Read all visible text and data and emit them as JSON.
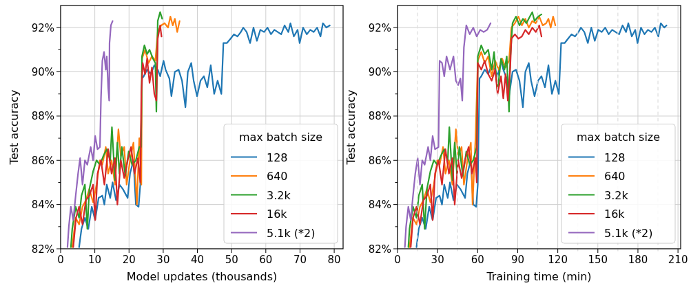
{
  "chart_data": [
    {
      "type": "line",
      "xlabel": "Model updates (thousands)",
      "ylabel": "Test accuracy",
      "legend_title": "max batch size",
      "legend": "bottom right",
      "grid": true,
      "line_style": "solid",
      "xlim": [
        0,
        82.6
      ],
      "xticks": [
        0,
        10,
        20,
        30,
        40,
        50,
        60,
        70,
        80
      ],
      "ylim": [
        82,
        93
      ],
      "yticks": [
        {
          "value": 82,
          "label": "82%"
        },
        {
          "value": 83,
          "label": null
        },
        {
          "value": 84,
          "label": "84%"
        },
        {
          "value": 85,
          "label": null
        },
        {
          "value": 86,
          "label": "86%"
        },
        {
          "value": 87,
          "label": null
        },
        {
          "value": 88,
          "label": "88%"
        },
        {
          "value": 89,
          "label": null
        },
        {
          "value": 90,
          "label": "90%"
        },
        {
          "value": 91,
          "label": null
        },
        {
          "value": 92,
          "label": "92%"
        }
      ],
      "series": [
        {
          "name": "128",
          "color": "#1f77b4",
          "x": [
            5.4,
            6.1,
            7.1,
            8.1,
            9.1,
            10.1,
            11.1,
            12.2,
            12.8,
            13.5,
            14.5,
            15.2,
            16.2,
            17.2,
            18.2,
            19.6,
            20.3,
            21.3,
            22.0,
            22.8,
            23.3,
            23.8,
            24.3,
            25.3,
            26.4,
            27.4,
            28.4,
            29.1,
            30.1,
            30.7,
            31.8,
            32.4,
            33.4,
            34.5,
            35.5,
            36.5,
            37.2,
            38.2,
            38.9,
            39.9,
            40.9,
            41.9,
            42.9,
            43.9,
            44.9,
            45.9,
            47.0,
            47.6,
            48.6,
            49.7,
            50.7,
            51.7,
            52.7,
            53.4,
            54.4,
            55.4,
            56.4,
            57.4,
            58.4,
            59.5,
            60.5,
            61.5,
            62.5,
            63.5,
            64.5,
            65.5,
            66.6,
            67.2,
            68.2,
            69.3,
            69.9,
            70.9,
            72.0,
            73.0,
            74.0,
            75.0,
            76.0,
            76.7,
            77.7,
            78.7
          ],
          "values": [
            82.07,
            82.9,
            83.4,
            82.9,
            83.9,
            83.3,
            84.3,
            84.4,
            84.0,
            84.9,
            84.3,
            85.0,
            84.2,
            84.9,
            84.7,
            84.3,
            85.4,
            86.0,
            84.0,
            83.9,
            84.9,
            89.7,
            89.8,
            90.1,
            89.9,
            90.3,
            90.1,
            89.8,
            90.5,
            90.1,
            89.7,
            88.9,
            90.0,
            90.1,
            89.6,
            88.4,
            90.0,
            90.4,
            89.6,
            88.9,
            89.6,
            89.8,
            89.3,
            90.3,
            89.0,
            89.6,
            89.0,
            91.3,
            91.3,
            91.5,
            91.7,
            91.6,
            91.8,
            92.0,
            91.8,
            91.3,
            92.0,
            91.4,
            91.9,
            91.8,
            92.0,
            91.7,
            91.9,
            91.8,
            91.7,
            92.1,
            91.8,
            92.2,
            91.6,
            91.9,
            91.3,
            92.0,
            91.7,
            91.9,
            91.8,
            92.0,
            91.6,
            92.2,
            92.0,
            92.1
          ]
        },
        {
          "name": "640",
          "color": "#ff7f0e",
          "x": [
            3.4,
            4.4,
            5.4,
            6.4,
            7.4,
            8.4,
            9.5,
            10.5,
            11.5,
            12.2,
            13.2,
            13.9,
            14.9,
            15.9,
            16.9,
            17.6,
            18.6,
            19.3,
            20.3,
            21.3,
            22.3,
            23.0,
            23.6,
            23.8,
            24.7,
            25.7,
            26.7,
            27.7,
            28.4,
            29.4,
            30.4,
            31.4,
            32.1,
            32.8,
            33.4,
            34.1,
            34.8
          ],
          "values": [
            82.07,
            83.4,
            83.1,
            83.9,
            84.2,
            84.7,
            84.1,
            84.9,
            86.0,
            85.8,
            86.6,
            85.4,
            86.0,
            84.9,
            87.4,
            86.2,
            86.6,
            84.9,
            86.0,
            86.8,
            84.0,
            87.0,
            84.9,
            90.6,
            91.0,
            90.4,
            90.7,
            90.5,
            91.8,
            92.1,
            92.2,
            92.0,
            92.5,
            92.1,
            92.4,
            91.8,
            92.3
          ]
        },
        {
          "name": "3.2k",
          "color": "#2ca02c",
          "x": [
            3.0,
            3.4,
            4.4,
            5.4,
            6.1,
            7.1,
            7.8,
            8.4,
            9.5,
            10.5,
            11.5,
            12.5,
            13.5,
            14.5,
            15.0,
            15.9,
            16.6,
            17.2,
            17.9,
            18.9,
            19.9,
            20.9,
            22.0,
            23.0,
            23.5,
            23.8,
            24.5,
            25.3,
            26.0,
            27.0,
            27.7,
            28.0,
            28.4,
            29.1,
            29.7
          ],
          "values": [
            82.07,
            82.9,
            83.9,
            83.4,
            84.4,
            84.9,
            82.9,
            84.7,
            85.5,
            86.0,
            85.8,
            86.2,
            86.5,
            86.0,
            87.5,
            85.1,
            86.8,
            85.4,
            86.6,
            85.3,
            86.4,
            85.8,
            86.0,
            86.6,
            86.6,
            90.7,
            91.2,
            90.8,
            91.0,
            90.6,
            90.4,
            88.2,
            92.3,
            92.7,
            92.4
          ]
        },
        {
          "name": "16k",
          "color": "#d62728",
          "x": [
            3.7,
            4.5,
            5.4,
            6.4,
            7.4,
            8.4,
            9.5,
            10.1,
            10.8,
            11.8,
            12.8,
            13.9,
            14.9,
            15.9,
            16.6,
            17.6,
            18.6,
            19.6,
            20.6,
            21.6,
            22.6,
            23.3,
            23.6,
            24.0,
            24.7,
            25.3,
            26.0,
            26.7,
            27.4,
            28.0,
            28.4,
            29.1,
            29.5
          ],
          "values": [
            82.07,
            83.4,
            83.9,
            83.1,
            84.2,
            84.4,
            84.9,
            83.3,
            85.4,
            86.0,
            84.9,
            86.5,
            85.4,
            86.1,
            84.0,
            86.0,
            85.2,
            86.0,
            86.6,
            85.4,
            86.1,
            85.0,
            89.0,
            90.4,
            89.9,
            90.6,
            89.5,
            90.2,
            89.0,
            88.7,
            91.5,
            92.1,
            91.6
          ]
        },
        {
          "name": "5.1k (*2)",
          "color": "#9467bd",
          "x": [
            2.0,
            2.4,
            3.0,
            3.7,
            4.4,
            5.1,
            5.7,
            6.4,
            7.1,
            7.8,
            8.8,
            9.5,
            10.1,
            10.8,
            11.5,
            11.8,
            12.2,
            12.7,
            13.2,
            13.5,
            13.9,
            14.2,
            14.3,
            14.7,
            15.2
          ],
          "values": [
            82.07,
            83.0,
            83.9,
            83.3,
            84.4,
            85.4,
            86.1,
            84.9,
            86.0,
            85.8,
            86.6,
            86.0,
            87.1,
            86.5,
            86.6,
            88.8,
            90.5,
            90.9,
            90.1,
            90.7,
            89.3,
            88.7,
            91.3,
            92.1,
            92.3
          ]
        }
      ]
    },
    {
      "type": "line",
      "xlabel": "Training time (min)",
      "ylabel": "Test accuracy",
      "legend_title": "max batch size",
      "legend": "bottom right",
      "grid": true,
      "line_style": "solid",
      "xlim": [
        0,
        212
      ],
      "xticks": [
        0,
        30,
        60,
        90,
        120,
        150,
        180,
        210
      ],
      "ylim": [
        82,
        93
      ],
      "yticks": [
        {
          "value": 82,
          "label": "82%"
        },
        {
          "value": 83,
          "label": null
        },
        {
          "value": 84,
          "label": "84%"
        },
        {
          "value": 85,
          "label": null
        },
        {
          "value": 86,
          "label": "86%"
        },
        {
          "value": 87,
          "label": null
        },
        {
          "value": 88,
          "label": "88%"
        },
        {
          "value": 89,
          "label": null
        },
        {
          "value": 90,
          "label": "90%"
        },
        {
          "value": 91,
          "label": null
        },
        {
          "value": 92,
          "label": "92%"
        }
      ],
      "ref_lines": [
        {
          "axis": "x",
          "value": 15,
          "color": "#dddddd",
          "line_style": "dashed"
        },
        {
          "axis": "x",
          "value": 45,
          "color": "#dddddd",
          "line_style": "dashed"
        },
        {
          "axis": "x",
          "value": 75,
          "color": "#dddddd",
          "line_style": "dashed"
        },
        {
          "axis": "x",
          "value": 105,
          "color": "#dddddd",
          "line_style": "dashed"
        },
        {
          "axis": "x",
          "value": 135,
          "color": "#dddddd",
          "line_style": "dashed"
        },
        {
          "axis": "x",
          "value": 165,
          "color": "#dddddd",
          "line_style": "dashed"
        },
        {
          "axis": "x",
          "value": 195,
          "color": "#dddddd",
          "line_style": "dashed"
        }
      ],
      "series": [
        {
          "name": "128",
          "color": "#1f77b4",
          "x": [
            14.2,
            15.9,
            18.5,
            21.1,
            23.7,
            26.3,
            28.9,
            31.5,
            33.3,
            35.0,
            37.6,
            39.3,
            41.9,
            44.5,
            47.1,
            50.6,
            52.3,
            54.9,
            56.7,
            58.9,
            60.1,
            61.4,
            62.7,
            65.3,
            67.9,
            70.5,
            73.1,
            74.9,
            77.5,
            79.2,
            81.8,
            83.5,
            86.1,
            88.7,
            91.3,
            93.9,
            95.7,
            98.3,
            100.0,
            102.6,
            105.2,
            107.8,
            110.4,
            113.0,
            115.6,
            118.2,
            120.8,
            122.5,
            125.1,
            127.7,
            130.3,
            132.9,
            135.5,
            137.3,
            139.9,
            142.5,
            145.1,
            147.7,
            150.3,
            152.9,
            155.5,
            158.1,
            160.7,
            163.3,
            165.9,
            168.5,
            171.1,
            172.8,
            175.4,
            178.0,
            179.7,
            182.3,
            184.9,
            187.5,
            190.1,
            192.7,
            195.3,
            197.1,
            199.7,
            201.4
          ],
          "values": [
            82.07,
            82.9,
            83.4,
            82.9,
            83.9,
            83.3,
            84.3,
            84.4,
            84.0,
            84.9,
            84.3,
            85.0,
            84.2,
            84.9,
            84.7,
            84.3,
            85.4,
            86.0,
            84.0,
            83.9,
            84.9,
            89.7,
            89.8,
            90.1,
            89.9,
            90.3,
            90.1,
            89.8,
            90.5,
            90.1,
            89.7,
            88.9,
            90.0,
            90.1,
            89.6,
            88.4,
            90.0,
            90.4,
            89.6,
            88.9,
            89.6,
            89.8,
            89.3,
            90.3,
            89.0,
            89.6,
            89.0,
            91.3,
            91.3,
            91.5,
            91.7,
            91.6,
            91.8,
            92.0,
            91.8,
            91.3,
            92.0,
            91.4,
            91.9,
            91.8,
            92.0,
            91.7,
            91.9,
            91.8,
            91.7,
            92.1,
            91.8,
            92.2,
            91.6,
            91.9,
            91.3,
            92.0,
            91.7,
            91.9,
            91.8,
            92.0,
            91.6,
            92.2,
            92.0,
            92.1
          ]
        },
        {
          "name": "640",
          "color": "#ff7f0e",
          "x": [
            9.0,
            11.6,
            14.2,
            16.8,
            19.4,
            22.0,
            24.6,
            27.2,
            29.8,
            31.5,
            34.1,
            35.9,
            38.5,
            41.1,
            43.7,
            45.4,
            48.0,
            49.7,
            52.3,
            54.9,
            56.2,
            58.4,
            60.1,
            62.7,
            65.3,
            67.9,
            70.5,
            73.1,
            75.7,
            78.3,
            80.9,
            83.5,
            85.3,
            87.9,
            90.5,
            93.1,
            95.7,
            98.3,
            100.9,
            103.5,
            106.1,
            108.7,
            111.3,
            113.0,
            114.7,
            116.5,
            118.2
          ],
          "values": [
            82.07,
            83.4,
            83.1,
            83.9,
            84.2,
            84.7,
            84.1,
            84.9,
            86.0,
            85.8,
            86.6,
            85.4,
            86.0,
            84.9,
            87.4,
            86.2,
            86.6,
            84.9,
            86.0,
            86.8,
            84.0,
            87.0,
            90.5,
            90.9,
            90.4,
            90.7,
            89.8,
            90.5,
            90.1,
            90.6,
            90.2,
            90.5,
            92.0,
            92.2,
            92.5,
            92.1,
            92.4,
            92.0,
            92.3,
            92.2,
            92.5,
            92.1,
            92.2,
            92.4,
            92.0,
            92.5,
            92.1
          ]
        },
        {
          "name": "3.2k",
          "color": "#2ca02c",
          "x": [
            8.1,
            9.0,
            11.6,
            14.2,
            15.9,
            18.5,
            20.3,
            22.0,
            24.6,
            27.2,
            29.8,
            32.4,
            35.0,
            37.6,
            38.8,
            41.1,
            42.8,
            44.5,
            46.3,
            48.9,
            51.5,
            54.1,
            56.7,
            59.3,
            60.1,
            62.7,
            65.3,
            67.9,
            70.5,
            72.3,
            74.9,
            77.5,
            80.1,
            81.8,
            83.5,
            84.4,
            86.1,
            88.7,
            91.3,
            93.9,
            96.5,
            99.1,
            100.9,
            102.6,
            105.2,
            107.8
          ],
          "values": [
            82.07,
            82.9,
            83.9,
            83.4,
            84.4,
            84.9,
            82.9,
            84.7,
            85.5,
            86.0,
            85.8,
            86.2,
            86.5,
            86.0,
            87.5,
            85.1,
            86.8,
            85.4,
            86.6,
            85.3,
            86.4,
            85.8,
            86.0,
            86.6,
            90.7,
            91.2,
            90.8,
            91.0,
            90.1,
            90.9,
            89.1,
            90.6,
            90.1,
            90.7,
            88.2,
            90.6,
            92.2,
            92.5,
            92.1,
            92.4,
            92.2,
            92.5,
            92.7,
            92.3,
            92.5,
            92.6
          ]
        },
        {
          "name": "16k",
          "color": "#d62728",
          "x": [
            9.9,
            11.6,
            14.2,
            16.8,
            19.4,
            22.0,
            24.6,
            26.3,
            28.1,
            30.7,
            33.3,
            35.9,
            38.5,
            41.1,
            42.8,
            45.4,
            48.0,
            50.6,
            53.2,
            55.8,
            58.4,
            59.3,
            60.1,
            62.7,
            65.3,
            67.9,
            70.5,
            73.1,
            74.9,
            77.5,
            79.2,
            80.9,
            82.6,
            84.4,
            85.3,
            87.9,
            90.5,
            93.1,
            95.7,
            98.3,
            100.9,
            103.5,
            106.1,
            107.8
          ],
          "values": [
            82.07,
            83.4,
            83.9,
            83.1,
            84.2,
            84.4,
            84.9,
            83.3,
            85.4,
            86.0,
            84.9,
            86.5,
            85.4,
            86.1,
            84.0,
            86.0,
            85.2,
            86.0,
            86.6,
            85.4,
            86.1,
            85.0,
            90.4,
            90.1,
            90.5,
            89.9,
            89.6,
            90.1,
            89.0,
            89.8,
            88.8,
            89.9,
            88.7,
            90.2,
            91.5,
            91.7,
            91.5,
            91.6,
            91.9,
            91.7,
            92.0,
            91.8,
            92.1,
            91.6
          ]
        },
        {
          "name": "5.1k (*2)",
          "color": "#9467bd",
          "x": [
            5.5,
            6.4,
            8.1,
            9.9,
            11.6,
            13.3,
            15.1,
            16.8,
            18.5,
            20.3,
            22.9,
            24.6,
            26.3,
            28.1,
            30.7,
            31.5,
            33.3,
            35.0,
            36.7,
            39.3,
            41.9,
            43.7,
            45.4,
            47.1,
            48.5,
            49.7,
            51.5,
            54.1,
            56.7,
            59.3,
            61.9,
            64.5,
            67.1,
            69.7
          ],
          "values": [
            82.07,
            83.0,
            83.9,
            83.3,
            84.4,
            85.4,
            86.1,
            84.9,
            86.0,
            85.8,
            86.6,
            86.0,
            87.1,
            86.5,
            86.6,
            90.5,
            90.4,
            89.8,
            90.7,
            90.1,
            90.7,
            89.6,
            89.4,
            89.7,
            88.7,
            91.1,
            92.1,
            91.7,
            92.0,
            91.6,
            91.9,
            91.8,
            91.9,
            92.2
          ]
        }
      ]
    }
  ]
}
